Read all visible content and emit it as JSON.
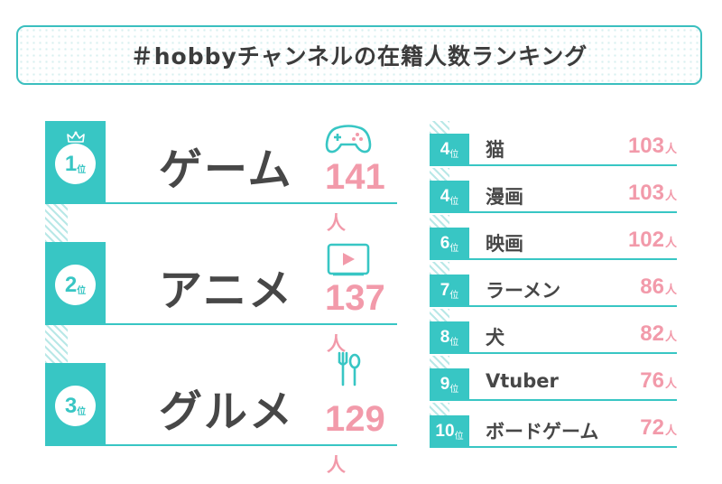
{
  "title": "＃hobbyチャンネルの在籍人数ランキング",
  "rank_suffix": "位",
  "unit": "人",
  "colors": {
    "accent": "#38c6c4",
    "count": "#f29aaa",
    "text": "#474747"
  },
  "top3": [
    {
      "rank": "1",
      "name": "ゲーム",
      "count": "141",
      "icon": "game-controller-icon"
    },
    {
      "rank": "2",
      "name": "アニメ",
      "count": "137",
      "icon": "video-player-icon"
    },
    {
      "rank": "3",
      "name": "グルメ",
      "count": "129",
      "icon": "fork-spoon-icon"
    }
  ],
  "others": [
    {
      "rank": "4",
      "name": "猫",
      "count": "103"
    },
    {
      "rank": "4",
      "name": "漫画",
      "count": "103"
    },
    {
      "rank": "6",
      "name": "映画",
      "count": "102"
    },
    {
      "rank": "7",
      "name": "ラーメン",
      "count": "86"
    },
    {
      "rank": "8",
      "name": "犬",
      "count": "82"
    },
    {
      "rank": "9",
      "name": "Vtuber",
      "count": "76"
    },
    {
      "rank": "10",
      "name": "ボードゲーム",
      "count": "72"
    }
  ]
}
